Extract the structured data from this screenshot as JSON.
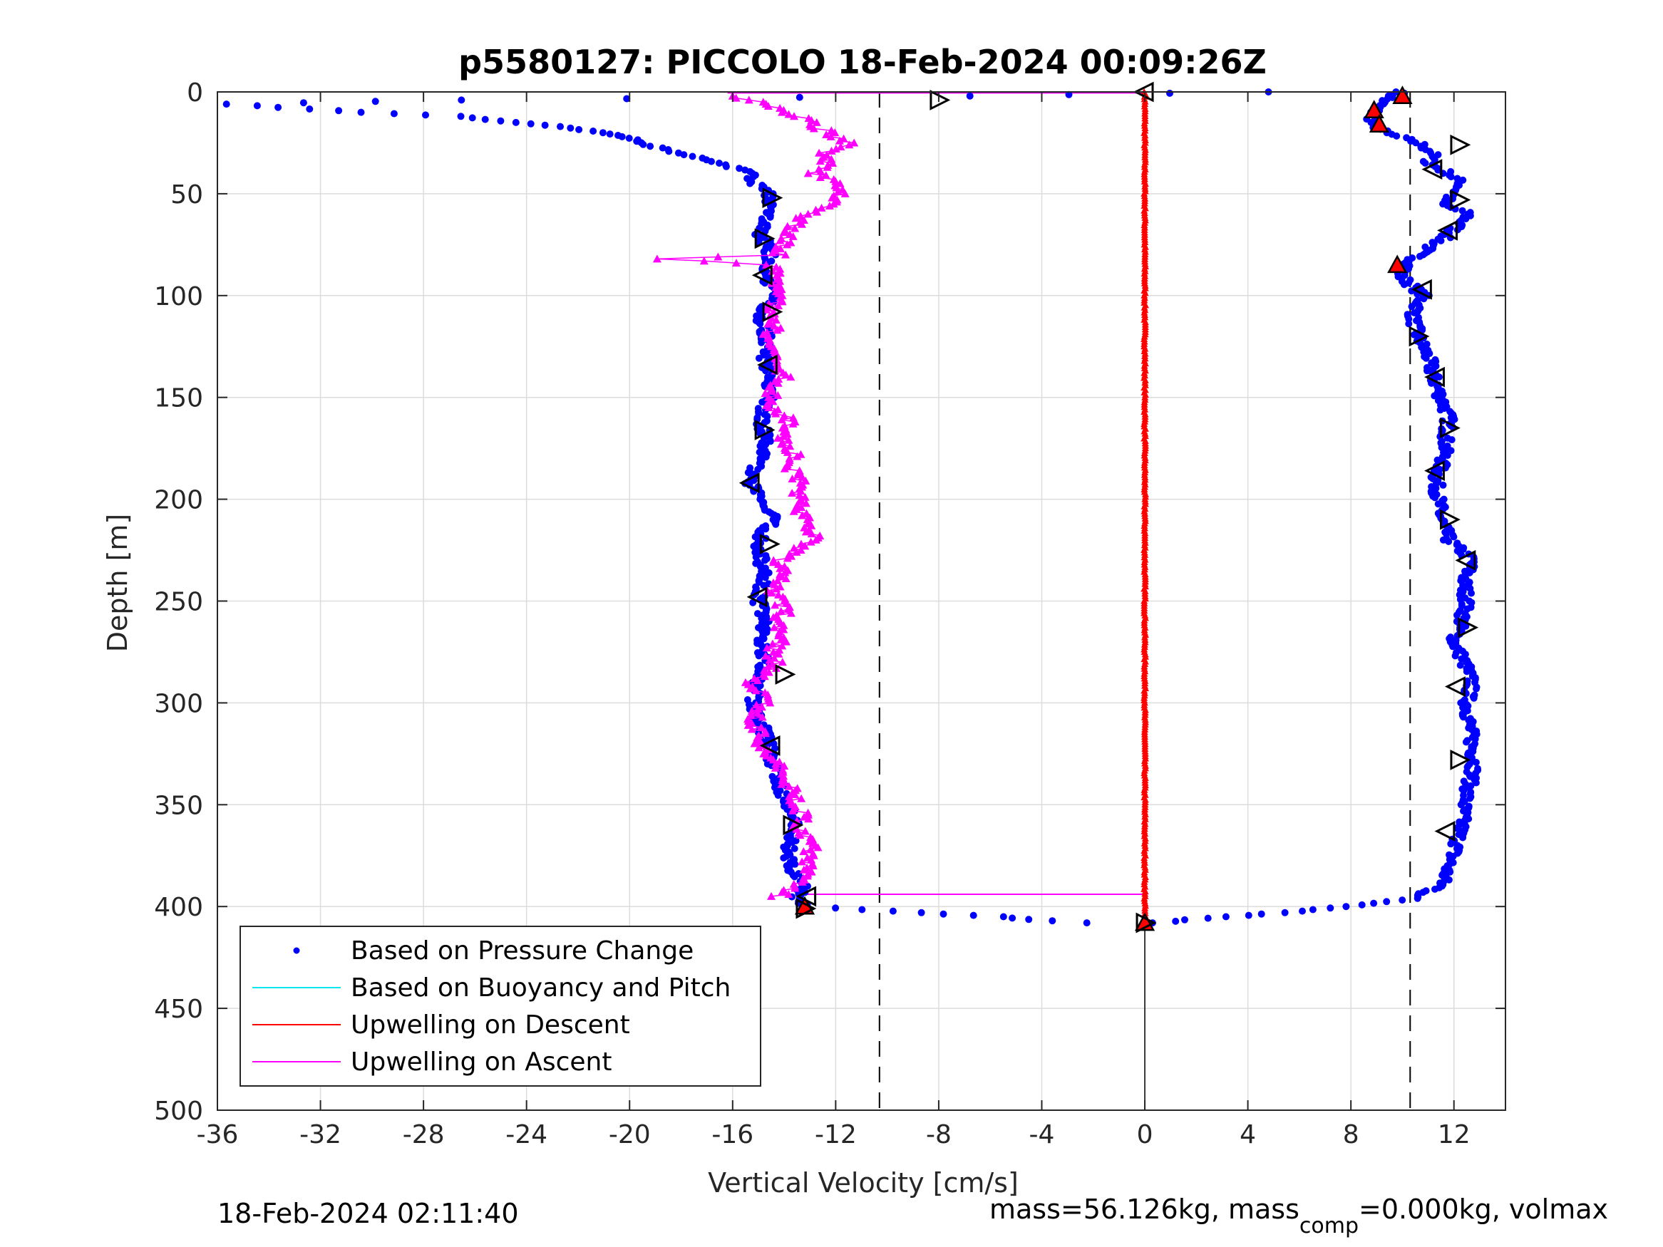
{
  "chart_data": {
    "type": "scatter",
    "title": "p5580127: PICCOLO 18-Feb-2024 00:09:26Z",
    "xlabel": "Vertical Velocity [cm/s]",
    "ylabel": "Depth [m]",
    "xlim": [
      -36,
      14
    ],
    "ylim": [
      0,
      500
    ],
    "y_reversed": true,
    "grid": true,
    "x_ticks": [
      -36,
      -32,
      -28,
      -24,
      -20,
      -16,
      -12,
      -8,
      -4,
      0,
      4,
      8,
      12
    ],
    "x_tick_labels": [
      "-36",
      "-32",
      "-28",
      "-24",
      "-20",
      "-16",
      "-12",
      "-8",
      "-4",
      "0",
      "4",
      "8",
      "12"
    ],
    "y_ticks": [
      0,
      50,
      100,
      150,
      200,
      250,
      300,
      350,
      400,
      450,
      500
    ],
    "y_tick_labels": [
      "0",
      "50",
      "100",
      "150",
      "200",
      "250",
      "300",
      "350",
      "400",
      "450",
      "500"
    ],
    "reference_lines": {
      "dashed_x": [
        -10.3,
        10.3
      ],
      "solid_x": [
        0
      ]
    },
    "legend_position": "bottom-left",
    "legend": [
      {
        "label": "Based on Pressure Change",
        "style": "dot",
        "color": "#0000ff"
      },
      {
        "label": "Based on Buoyancy and Pitch",
        "style": "line",
        "color": "#00e5ee"
      },
      {
        "label": "Upwelling on Descent",
        "style": "line",
        "color": "#ff0000"
      },
      {
        "label": "Upwelling on Ascent",
        "style": "line",
        "color": "#ff00ff"
      }
    ],
    "series": [
      {
        "key": "pressure_descent",
        "color": "#0000ff",
        "marker": "dot",
        "depth": [
          0,
          2,
          5,
          10,
          15,
          20,
          25,
          30,
          35,
          40,
          45,
          50,
          55,
          60,
          70,
          80,
          90,
          100,
          110,
          120,
          130,
          140,
          150,
          160,
          170,
          180,
          190,
          200,
          210,
          220,
          230,
          240,
          250,
          260,
          270,
          280,
          290,
          300,
          310,
          320,
          330,
          340,
          350,
          360,
          370,
          380,
          390,
          396,
          400,
          403,
          405,
          408
        ],
        "velocity": [
          10.0,
          9.6,
          9.2,
          8.9,
          8.8,
          9.3,
          10.6,
          11.2,
          11.0,
          11.8,
          12.3,
          12.0,
          11.5,
          12.6,
          11.8,
          10.6,
          9.9,
          10.8,
          10.4,
          10.6,
          11.0,
          11.2,
          11.5,
          11.8,
          11.7,
          11.6,
          11.3,
          11.4,
          11.5,
          11.8,
          12.7,
          12.4,
          12.5,
          12.3,
          12.0,
          12.4,
          12.7,
          12.5,
          12.6,
          12.7,
          12.8,
          12.6,
          12.4,
          12.3,
          12.1,
          11.8,
          11.5,
          10.4,
          8.0,
          5.5,
          3.2,
          0.3
        ]
      },
      {
        "key": "pressure_ascent",
        "color": "#0000ff",
        "marker": "dot",
        "depth": [
          408,
          407,
          405,
          403,
          400,
          396,
          390,
          380,
          370,
          360,
          350,
          340,
          330,
          320,
          310,
          300,
          290,
          280,
          270,
          260,
          250,
          240,
          230,
          220,
          210,
          200,
          190,
          180,
          170,
          160,
          150,
          140,
          130,
          120,
          110,
          100,
          90,
          80,
          70,
          60,
          50,
          45,
          40,
          35,
          30,
          25,
          22,
          20,
          17,
          15,
          12,
          10,
          6,
          4,
          2,
          0
        ],
        "velocity": [
          -2.0,
          -3.8,
          -5.6,
          -8.8,
          -13.2,
          -13.5,
          -13.3,
          -13.8,
          -13.8,
          -13.6,
          -13.9,
          -14.2,
          -14.4,
          -14.6,
          -14.9,
          -15.2,
          -15.1,
          -14.8,
          -14.9,
          -14.7,
          -15.0,
          -14.8,
          -14.9,
          -15.0,
          -14.4,
          -15.0,
          -15.4,
          -14.9,
          -14.7,
          -14.9,
          -14.6,
          -14.5,
          -14.8,
          -14.7,
          -14.9,
          -14.4,
          -14.7,
          -14.5,
          -14.9,
          -14.7,
          -14.6,
          -15.1,
          -15.3,
          -16.5,
          -18.1,
          -19.6,
          -20.2,
          -21.1,
          -22.5,
          -24.6,
          -26.5,
          -30.2,
          -35.6,
          -26.7,
          -6.6,
          4.8
        ]
      },
      {
        "key": "upwelling_descent",
        "color": "#ff0000",
        "marker": "triangle",
        "depth": [
          0,
          25,
          50,
          75,
          100,
          125,
          150,
          175,
          200,
          225,
          250,
          275,
          300,
          325,
          350,
          375,
          395,
          408
        ],
        "velocity": [
          0,
          0,
          0,
          0,
          0,
          0,
          0,
          0,
          0,
          0,
          0,
          0,
          0,
          0,
          0,
          0,
          0,
          0
        ]
      },
      {
        "key": "upwelling_ascent",
        "color": "#ff00ff",
        "marker": "triangle",
        "depth": [
          395,
          390,
          385,
          380,
          375,
          370,
          365,
          360,
          355,
          350,
          345,
          340,
          335,
          330,
          325,
          320,
          315,
          310,
          305,
          300,
          295,
          290,
          285,
          280,
          275,
          270,
          265,
          260,
          255,
          250,
          245,
          240,
          235,
          230,
          225,
          220,
          215,
          210,
          205,
          200,
          195,
          190,
          185,
          180,
          175,
          170,
          165,
          160,
          155,
          150,
          145,
          140,
          135,
          130,
          125,
          120,
          115,
          110,
          105,
          100,
          95,
          90,
          85,
          82,
          80,
          75,
          70,
          65,
          60,
          55,
          50,
          45,
          40,
          35,
          30,
          25,
          20,
          15,
          10,
          5,
          2
        ],
        "velocity": [
          -14.2,
          -13.6,
          -13.2,
          -13.0,
          -13.1,
          -12.9,
          -13.3,
          -13.5,
          -13.2,
          -13.7,
          -13.5,
          -13.9,
          -14.0,
          -14.3,
          -14.8,
          -15.0,
          -14.9,
          -15.2,
          -15.1,
          -14.8,
          -14.9,
          -15.2,
          -14.7,
          -14.3,
          -14.5,
          -14.2,
          -14.0,
          -14.3,
          -13.9,
          -14.2,
          -14.5,
          -14.2,
          -14.0,
          -14.3,
          -13.6,
          -12.8,
          -13.0,
          -13.1,
          -13.4,
          -13.2,
          -13.6,
          -13.4,
          -13.7,
          -13.5,
          -13.8,
          -14.2,
          -13.8,
          -13.9,
          -14.4,
          -14.6,
          -14.3,
          -14.0,
          -14.5,
          -14.2,
          -14.6,
          -14.9,
          -14.3,
          -14.7,
          -14.4,
          -14.2,
          -14.4,
          -14.1,
          -14.6,
          -18.7,
          -14.2,
          -14.0,
          -13.9,
          -13.5,
          -13.2,
          -12.2,
          -11.7,
          -11.9,
          -12.8,
          -12.3,
          -12.6,
          -11.5,
          -12.3,
          -13.0,
          -13.8,
          -14.8,
          -16.0
        ]
      }
    ],
    "open_triangle_markers": [
      {
        "depth": 0,
        "velocity": 0.0,
        "dir": "left"
      },
      {
        "depth": 4,
        "velocity": -8.0,
        "dir": "right"
      },
      {
        "depth": 26,
        "velocity": 12.2,
        "dir": "right"
      },
      {
        "depth": 38,
        "velocity": 11.2,
        "dir": "left"
      },
      {
        "depth": 52,
        "velocity": -14.5,
        "dir": "right"
      },
      {
        "depth": 53,
        "velocity": 12.2,
        "dir": "right"
      },
      {
        "depth": 68,
        "velocity": 11.8,
        "dir": "left"
      },
      {
        "depth": 72,
        "velocity": -14.8,
        "dir": "right"
      },
      {
        "depth": 90,
        "velocity": -14.8,
        "dir": "left"
      },
      {
        "depth": 97,
        "velocity": 10.8,
        "dir": "left"
      },
      {
        "depth": 108,
        "velocity": -14.5,
        "dir": "right"
      },
      {
        "depth": 120,
        "velocity": 10.6,
        "dir": "right"
      },
      {
        "depth": 134,
        "velocity": -14.6,
        "dir": "left"
      },
      {
        "depth": 140,
        "velocity": 11.3,
        "dir": "left"
      },
      {
        "depth": 165,
        "velocity": 11.8,
        "dir": "right"
      },
      {
        "depth": 166,
        "velocity": -14.8,
        "dir": "right"
      },
      {
        "depth": 186,
        "velocity": 11.3,
        "dir": "left"
      },
      {
        "depth": 192,
        "velocity": -15.3,
        "dir": "left"
      },
      {
        "depth": 210,
        "velocity": 11.8,
        "dir": "right"
      },
      {
        "depth": 222,
        "velocity": -14.6,
        "dir": "right"
      },
      {
        "depth": 230,
        "velocity": 12.5,
        "dir": "left"
      },
      {
        "depth": 248,
        "velocity": -15.0,
        "dir": "left"
      },
      {
        "depth": 263,
        "velocity": 12.5,
        "dir": "right"
      },
      {
        "depth": 286,
        "velocity": -14.0,
        "dir": "right"
      },
      {
        "depth": 292,
        "velocity": 12.1,
        "dir": "left"
      },
      {
        "depth": 321,
        "velocity": -14.5,
        "dir": "left"
      },
      {
        "depth": 328,
        "velocity": 12.2,
        "dir": "right"
      },
      {
        "depth": 360,
        "velocity": -13.7,
        "dir": "right"
      },
      {
        "depth": 363,
        "velocity": 11.7,
        "dir": "left"
      },
      {
        "depth": 395,
        "velocity": -13.1,
        "dir": "left"
      },
      {
        "depth": 401,
        "velocity": -13.2,
        "dir": "right"
      },
      {
        "depth": 408,
        "velocity": 0.0,
        "dir": "right"
      }
    ],
    "red_filled_markers": [
      {
        "depth": 2,
        "velocity": 10.0
      },
      {
        "depth": 9,
        "velocity": 8.9
      },
      {
        "depth": 16,
        "velocity": 9.1
      },
      {
        "depth": 85,
        "velocity": 9.8
      },
      {
        "depth": 400,
        "velocity": -13.2
      },
      {
        "depth": 408,
        "velocity": 0.0
      }
    ],
    "connector_lines": [
      {
        "depth": 0.5,
        "x_from": -16.2,
        "x_to": 0.0
      },
      {
        "depth": 394,
        "x_from": -13.3,
        "x_to": 0.0
      }
    ]
  },
  "footer": {
    "timestamp": "18-Feb-2024 02:11:40",
    "mass_prefix": "mass=56.126kg, mass",
    "mass_sub": "comp",
    "mass_suffix": "=0.000kg, volmax"
  },
  "colors": {
    "pressure": "#0000ff",
    "buoyancy": "#00e5ee",
    "upwelling_descent": "#ff0000",
    "upwelling_ascent": "#ff00ff",
    "axis": "#262626"
  }
}
